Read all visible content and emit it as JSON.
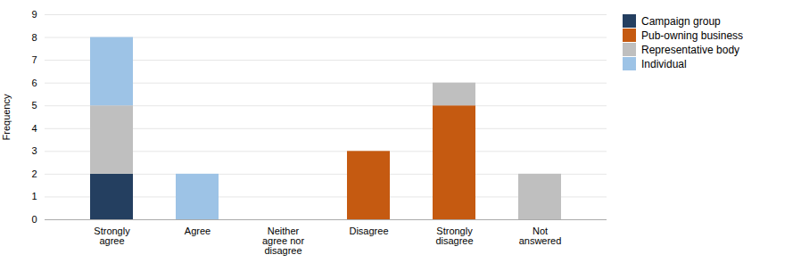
{
  "chart_data": {
    "type": "bar",
    "stacked": true,
    "categories": [
      "Strongly\nagree",
      "Agree",
      "Neither\nagree nor\ndisagree",
      "Disagree",
      "Strongly\ndisagree",
      "Not\nanswered"
    ],
    "series": [
      {
        "name": "Campaign group",
        "color": "#243F60",
        "values": [
          2,
          0,
          0,
          0,
          0,
          0
        ]
      },
      {
        "name": "Pub-owning business",
        "color": "#C55A11",
        "values": [
          0,
          0,
          0,
          3,
          5,
          0
        ]
      },
      {
        "name": "Representative body",
        "color": "#BFBFBF",
        "values": [
          3,
          0,
          0,
          0,
          1,
          2
        ]
      },
      {
        "name": "Individual",
        "color": "#9DC3E6",
        "values": [
          3,
          2,
          0,
          0,
          0,
          0
        ]
      }
    ],
    "ylabel": "Frequency",
    "ylim": [
      0,
      9
    ],
    "yticks": [
      0,
      1,
      2,
      3,
      4,
      5,
      6,
      7,
      8,
      9
    ],
    "grid": true,
    "legend": "right"
  }
}
